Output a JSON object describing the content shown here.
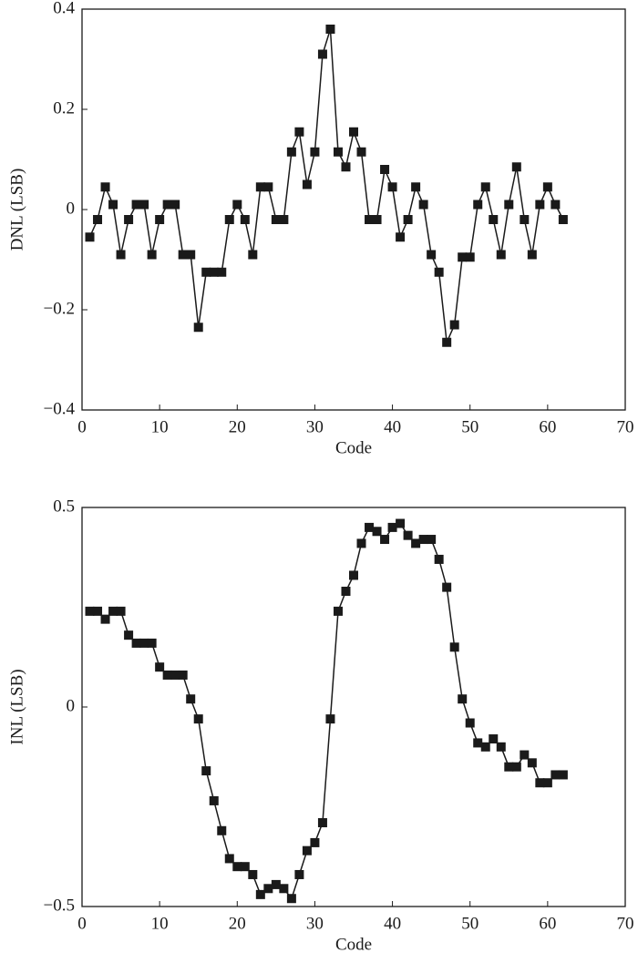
{
  "chart_data": [
    {
      "type": "line",
      "x_label": "Code",
      "y_label": "DNL (LSB)",
      "color": "#1a1a1a",
      "marker": "square",
      "xlim": [
        0,
        70
      ],
      "xticks": [
        0,
        10,
        20,
        30,
        40,
        50,
        60,
        70
      ],
      "ylim": [
        -0.4,
        0.4
      ],
      "yticks": [
        {
          "value": -0.4,
          "label": "−0.4"
        },
        {
          "value": -0.2,
          "label": "−0.2"
        },
        0,
        0.2,
        0.4
      ],
      "x": [
        1,
        2,
        3,
        4,
        5,
        6,
        7,
        8,
        9,
        10,
        11,
        12,
        13,
        14,
        15,
        16,
        17,
        18,
        19,
        20,
        21,
        22,
        23,
        24,
        25,
        26,
        27,
        28,
        29,
        30,
        31,
        32,
        33,
        34,
        35,
        36,
        37,
        38,
        39,
        40,
        41,
        42,
        43,
        44,
        45,
        46,
        47,
        48,
        49,
        50,
        51,
        52,
        53,
        54,
        55,
        56,
        57,
        58,
        59,
        60,
        61,
        62
      ],
      "values": [
        -0.055,
        -0.02,
        0.045,
        0.01,
        -0.09,
        -0.02,
        0.01,
        0.01,
        -0.09,
        -0.02,
        0.01,
        0.01,
        -0.09,
        -0.09,
        -0.235,
        -0.125,
        -0.125,
        -0.125,
        -0.02,
        0.01,
        -0.02,
        -0.09,
        0.045,
        0.045,
        -0.02,
        -0.02,
        0.115,
        0.155,
        0.05,
        0.115,
        0.31,
        0.36,
        0.115,
        0.085,
        0.155,
        0.115,
        -0.02,
        -0.02,
        0.08,
        0.045,
        -0.055,
        -0.02,
        0.045,
        0.01,
        -0.09,
        -0.125,
        -0.265,
        -0.23,
        -0.095,
        -0.095,
        0.01,
        0.045,
        -0.02,
        -0.09,
        0.01,
        0.085,
        -0.02,
        -0.09,
        0.01,
        0.045,
        0.01,
        -0.02
      ]
    },
    {
      "type": "line",
      "x_label": "Code",
      "y_label": "INL (LSB)",
      "color": "#1a1a1a",
      "marker": "square",
      "xlim": [
        0,
        70
      ],
      "xticks": [
        0,
        10,
        20,
        30,
        40,
        50,
        60,
        70
      ],
      "ylim": [
        -0.5,
        0.5
      ],
      "yticks": [
        {
          "value": -0.5,
          "label": "−0.5"
        },
        0,
        0.5
      ],
      "x": [
        1,
        2,
        3,
        4,
        5,
        6,
        7,
        8,
        9,
        10,
        11,
        12,
        13,
        14,
        15,
        16,
        17,
        18,
        19,
        20,
        21,
        22,
        23,
        24,
        25,
        26,
        27,
        28,
        29,
        30,
        31,
        32,
        33,
        34,
        35,
        36,
        37,
        38,
        39,
        40,
        41,
        42,
        43,
        44,
        45,
        46,
        47,
        48,
        49,
        50,
        51,
        52,
        53,
        54,
        55,
        56,
        57,
        58,
        59,
        60,
        61,
        62
      ],
      "values": [
        0.24,
        0.24,
        0.22,
        0.24,
        0.24,
        0.18,
        0.16,
        0.16,
        0.16,
        0.1,
        0.08,
        0.08,
        0.08,
        0.02,
        -0.03,
        -0.16,
        -0.235,
        -0.31,
        -0.38,
        -0.4,
        -0.4,
        -0.42,
        -0.47,
        -0.455,
        -0.445,
        -0.455,
        -0.48,
        -0.42,
        -0.36,
        -0.34,
        -0.29,
        -0.03,
        0.24,
        0.29,
        0.33,
        0.41,
        0.45,
        0.44,
        0.42,
        0.45,
        0.46,
        0.43,
        0.41,
        0.42,
        0.42,
        0.37,
        0.3,
        0.15,
        0.02,
        -0.04,
        -0.09,
        -0.1,
        -0.08,
        -0.1,
        -0.15,
        -0.15,
        -0.12,
        -0.14,
        -0.19,
        -0.19,
        -0.17,
        -0.17
      ]
    }
  ]
}
